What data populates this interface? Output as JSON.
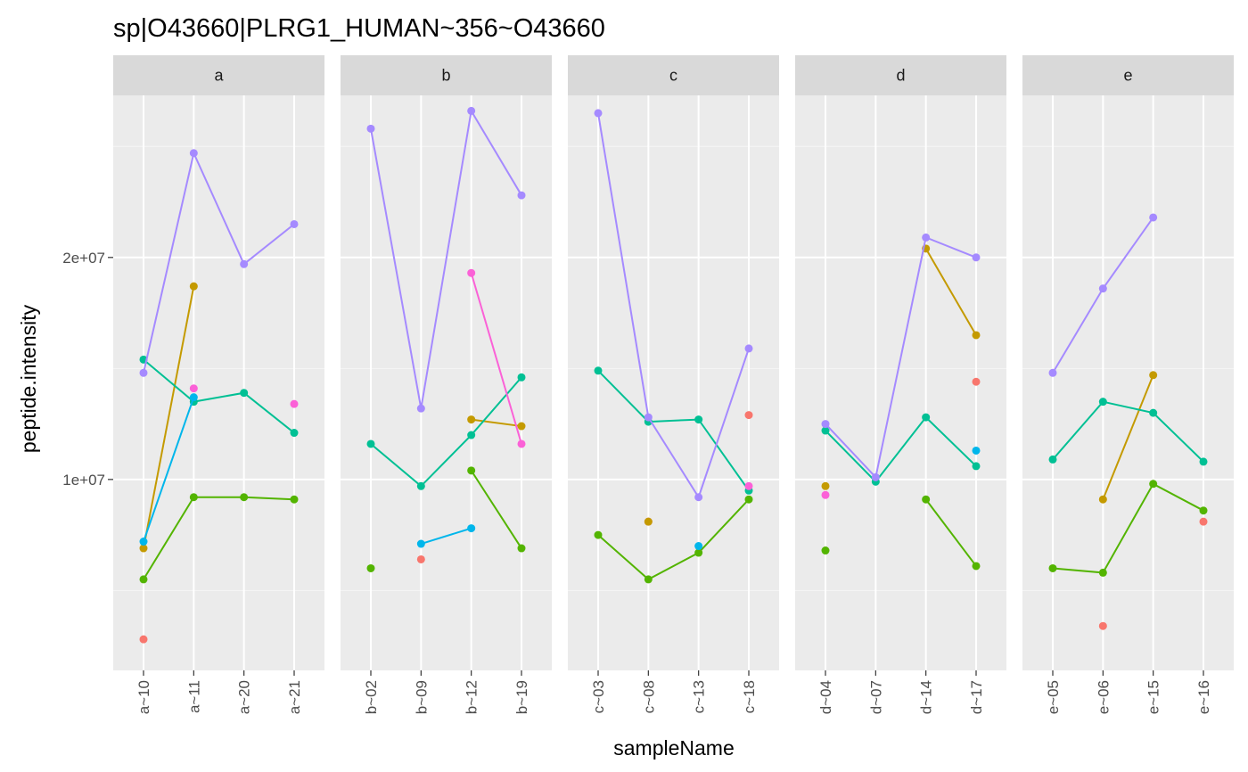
{
  "chart_data": {
    "type": "line",
    "title": "sp|O43660|PLRG1_HUMAN~356~O43660",
    "xlabel": "sampleName",
    "ylabel": "peptide.intensity",
    "ylim": [
      1400000,
      27300000
    ],
    "y_ticks": [
      {
        "value": 10000000,
        "label": "1e+07"
      },
      {
        "value": 20000000,
        "label": "2e+07"
      }
    ],
    "y_minor_ticks": [
      5000000,
      15000000,
      25000000
    ],
    "grid": true,
    "legend": "none",
    "facets": [
      {
        "label": "a",
        "categories": [
          "a~10",
          "a~11",
          "a~20",
          "a~21"
        ]
      },
      {
        "label": "b",
        "categories": [
          "b~02",
          "b~09",
          "b~12",
          "b~19"
        ]
      },
      {
        "label": "c",
        "categories": [
          "c~03",
          "c~08",
          "c~13",
          "c~18"
        ]
      },
      {
        "label": "d",
        "categories": [
          "d~04",
          "d~07",
          "d~14",
          "d~17"
        ]
      },
      {
        "label": "e",
        "categories": [
          "e~05",
          "e~06",
          "e~15",
          "e~16"
        ]
      }
    ],
    "series": [
      {
        "color": "#F8766D",
        "values": [
          [
            2800000,
            null,
            null,
            null
          ],
          [
            null,
            6400000,
            null,
            null
          ],
          [
            null,
            8100000,
            null,
            12900000
          ],
          [
            null,
            null,
            null,
            14400000
          ],
          [
            null,
            3400000,
            null,
            8100000
          ]
        ]
      },
      {
        "color": "#C49A00",
        "values": [
          [
            6900000,
            18700000,
            null,
            null
          ],
          [
            null,
            null,
            12700000,
            12400000
          ],
          [
            null,
            8100000,
            null,
            null
          ],
          [
            9700000,
            null,
            20400000,
            16500000
          ],
          [
            null,
            9100000,
            14700000,
            null
          ]
        ]
      },
      {
        "color": "#53B400",
        "values": [
          [
            5500000,
            9200000,
            9200000,
            9100000
          ],
          [
            6000000,
            null,
            10400000,
            6900000
          ],
          [
            7500000,
            5500000,
            6700000,
            9100000
          ],
          [
            6800000,
            null,
            9100000,
            6100000
          ],
          [
            6000000,
            5800000,
            9800000,
            8600000
          ]
        ]
      },
      {
        "color": "#00C094",
        "values": [
          [
            15400000,
            13500000,
            13900000,
            12100000
          ],
          [
            11600000,
            9700000,
            12000000,
            14600000
          ],
          [
            14900000,
            12600000,
            12700000,
            9500000
          ],
          [
            12200000,
            9900000,
            12800000,
            10600000
          ],
          [
            10900000,
            13500000,
            13000000,
            10800000
          ]
        ]
      },
      {
        "color": "#00B6EB",
        "values": [
          [
            7200000,
            13700000,
            null,
            null
          ],
          [
            null,
            7100000,
            7800000,
            null
          ],
          [
            null,
            null,
            7000000,
            null
          ],
          [
            null,
            null,
            null,
            11300000
          ],
          [
            null,
            null,
            null,
            null
          ]
        ]
      },
      {
        "color": "#A58AFF",
        "values": [
          [
            14800000,
            24700000,
            19700000,
            21500000
          ],
          [
            25800000,
            13200000,
            26600000,
            22800000
          ],
          [
            26500000,
            12800000,
            9200000,
            15900000
          ],
          [
            12500000,
            10100000,
            20900000,
            20000000
          ],
          [
            14800000,
            18600000,
            21800000,
            null
          ]
        ]
      },
      {
        "color": "#FB61D7",
        "values": [
          [
            null,
            14100000,
            null,
            13400000
          ],
          [
            null,
            null,
            19300000,
            11600000
          ],
          [
            null,
            null,
            null,
            9700000
          ],
          [
            9300000,
            null,
            null,
            null
          ],
          [
            null,
            null,
            null,
            null
          ]
        ]
      }
    ]
  }
}
